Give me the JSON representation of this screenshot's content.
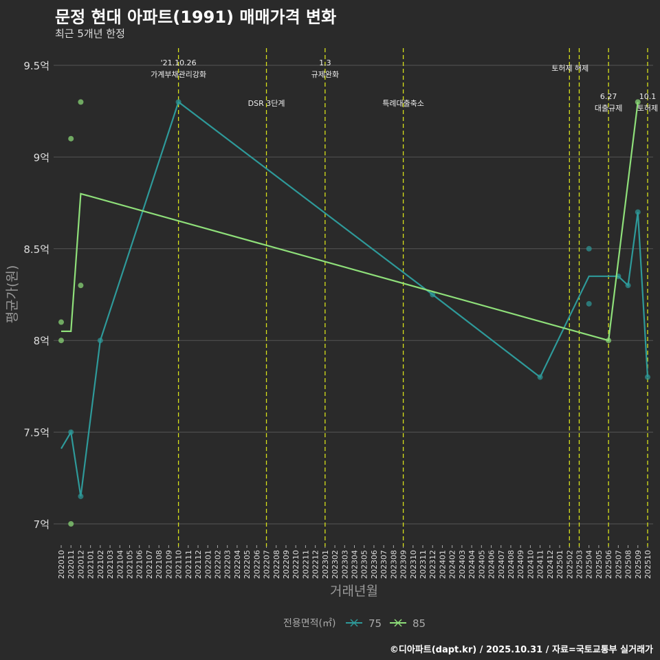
{
  "title": "문정 현대 아파트(1991) 매매가격 변화",
  "subtitle": "최근 5개년 한정",
  "footer": "©디아파트(dapt.kr) / 2025.10.31 / 자료=국토교통부 실거래가",
  "colors": {
    "bg": "#2a2a2a",
    "s75": "#2e9a9a",
    "s85": "#8fe07a",
    "vline": "#d8e21a",
    "grid": "#555555"
  },
  "chart_data": {
    "type": "line",
    "xlabel": "거래년월",
    "ylabel": "평균가(원)",
    "ylim": [
      6.9,
      9.6
    ],
    "yticks": [
      {
        "v": 7,
        "label": "7억"
      },
      {
        "v": 7.5,
        "label": "7.5억"
      },
      {
        "v": 8,
        "label": "8억"
      },
      {
        "v": 8.5,
        "label": "8.5억"
      },
      {
        "v": 9,
        "label": "9억"
      },
      {
        "v": 9.5,
        "label": "9.5억"
      }
    ],
    "categories": [
      "202010",
      "202011",
      "202012",
      "202101",
      "202102",
      "202103",
      "202104",
      "202105",
      "202106",
      "202107",
      "202108",
      "202109",
      "202110",
      "202111",
      "202112",
      "202201",
      "202202",
      "202203",
      "202204",
      "202205",
      "202206",
      "202207",
      "202208",
      "202209",
      "202210",
      "202211",
      "202212",
      "202301",
      "202302",
      "202303",
      "202304",
      "202305",
      "202306",
      "202307",
      "202308",
      "202309",
      "202310",
      "202311",
      "202312",
      "202401",
      "202402",
      "202403",
      "202404",
      "202405",
      "202406",
      "202407",
      "202408",
      "202409",
      "202410",
      "202411",
      "202412",
      "202501",
      "202502",
      "202503",
      "202504",
      "202505",
      "202506",
      "202507",
      "202508",
      "202509",
      "202510"
    ],
    "legend": {
      "title": "전용면적(㎡)",
      "position": "bottom"
    },
    "series": [
      {
        "name": "75",
        "color": "#2e9a9a",
        "points": [
          [
            "202010",
            7.41
          ],
          [
            "202011",
            7.5
          ],
          [
            "202012",
            7.15
          ],
          [
            "202102",
            8.0
          ],
          [
            "202110",
            9.3
          ],
          [
            "202312",
            8.25
          ],
          [
            "202411",
            7.8
          ],
          [
            "202504",
            8.35
          ],
          [
            "202507",
            8.35
          ],
          [
            "202508",
            8.3
          ],
          [
            "202509",
            8.7
          ],
          [
            "202510",
            7.8
          ]
        ],
        "scatter": [
          [
            "202011",
            7.5
          ],
          [
            "202012",
            7.15
          ],
          [
            "202102",
            8.0
          ],
          [
            "202110",
            9.3
          ],
          [
            "202312",
            8.25
          ],
          [
            "202411",
            7.8
          ],
          [
            "202504",
            8.5
          ],
          [
            "202504",
            8.2
          ],
          [
            "202507",
            8.35
          ],
          [
            "202508",
            8.3
          ],
          [
            "202509",
            8.7
          ],
          [
            "202510",
            7.8
          ]
        ]
      },
      {
        "name": "85",
        "color": "#8fe07a",
        "points": [
          [
            "202010",
            8.05
          ],
          [
            "202011",
            8.05
          ],
          [
            "202012",
            8.8
          ],
          [
            "202506",
            8.0
          ],
          [
            "202509",
            9.3
          ]
        ],
        "scatter": [
          [
            "202010",
            8.1
          ],
          [
            "202010",
            8.0
          ],
          [
            "202011",
            9.1
          ],
          [
            "202011",
            7.0
          ],
          [
            "202012",
            9.3
          ],
          [
            "202012",
            8.3
          ],
          [
            "202506",
            8.0
          ],
          [
            "202509",
            9.3
          ]
        ]
      }
    ],
    "events": [
      {
        "x": "202110",
        "lines": [
          "'21.10.26",
          "가계부채관리강화"
        ],
        "level": "top"
      },
      {
        "x": "202207",
        "lines": [
          "DSR 3단계"
        ],
        "level": "low"
      },
      {
        "x": "202301",
        "lines": [
          "1.3",
          "규제완화"
        ],
        "level": "top"
      },
      {
        "x": "202309",
        "lines": [
          "특례대출축소"
        ],
        "level": "low"
      },
      {
        "x": "202502",
        "lines": [
          "토허제 해제"
        ],
        "level": "mid"
      },
      {
        "x": "202503",
        "lines": [],
        "level": "none"
      },
      {
        "x": "202506",
        "lines": [
          "6.27",
          "대출규제"
        ],
        "level": "right"
      },
      {
        "x": "202510",
        "lines": [
          "10.1",
          "토허제"
        ],
        "level": "right"
      }
    ]
  }
}
